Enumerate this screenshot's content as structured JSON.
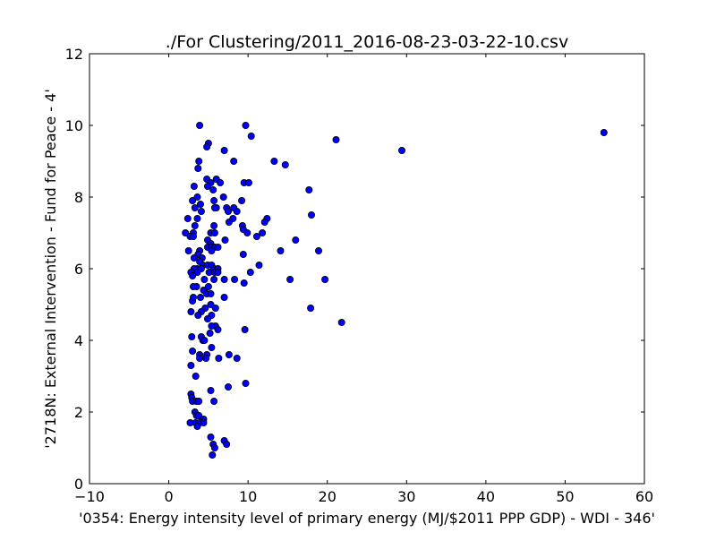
{
  "chart_data": {
    "type": "scatter",
    "title": "./For Clustering/2011_2016-08-23-03-22-10.csv",
    "xlabel": "'0354: Energy intensity level of primary energy  (MJ/$2011 PPP GDP) - WDI - 346'",
    "ylabel": "'2718N: External Intervention - Fund for Peace - 4'",
    "xlim": [
      -10,
      60
    ],
    "ylim": [
      0,
      12
    ],
    "xticks": [
      -10,
      0,
      10,
      20,
      30,
      40,
      50,
      60
    ],
    "yticks": [
      0,
      2,
      4,
      6,
      8,
      10,
      12
    ],
    "xtick_labels": [
      "−10",
      "0",
      "10",
      "20",
      "30",
      "40",
      "50",
      "60"
    ],
    "ytick_labels": [
      "0",
      "2",
      "4",
      "6",
      "8",
      "10",
      "12"
    ],
    "grid": false,
    "marker_color": "#0000ff",
    "marker_edge_color": "#000000",
    "series": [
      {
        "points": [
          [
            3.9,
            10.0
          ],
          [
            9.7,
            10.0
          ],
          [
            10.4,
            9.7
          ],
          [
            21.1,
            9.6
          ],
          [
            54.9,
            9.8
          ],
          [
            5.0,
            9.5
          ],
          [
            4.8,
            9.4
          ],
          [
            29.4,
            9.3
          ],
          [
            7.0,
            9.3
          ],
          [
            13.3,
            9.0
          ],
          [
            14.7,
            8.9
          ],
          [
            3.8,
            9.0
          ],
          [
            8.2,
            9.0
          ],
          [
            3.7,
            8.8
          ],
          [
            4.8,
            8.5
          ],
          [
            6.0,
            8.5
          ],
          [
            9.5,
            8.4
          ],
          [
            10.1,
            8.4
          ],
          [
            6.5,
            8.4
          ],
          [
            5.3,
            8.4
          ],
          [
            3.2,
            8.3
          ],
          [
            4.9,
            8.3
          ],
          [
            5.6,
            8.2
          ],
          [
            17.7,
            8.2
          ],
          [
            3.6,
            8.0
          ],
          [
            3.0,
            7.9
          ],
          [
            6.9,
            8.0
          ],
          [
            9.2,
            7.9
          ],
          [
            5.7,
            7.9
          ],
          [
            4.0,
            7.8
          ],
          [
            3.3,
            7.7
          ],
          [
            6.0,
            7.7
          ],
          [
            5.8,
            7.7
          ],
          [
            4.1,
            7.6
          ],
          [
            7.3,
            7.7
          ],
          [
            8.2,
            7.7
          ],
          [
            8.6,
            7.6
          ],
          [
            7.5,
            7.6
          ],
          [
            18.0,
            7.5
          ],
          [
            12.4,
            7.4
          ],
          [
            2.4,
            7.4
          ],
          [
            3.6,
            7.4
          ],
          [
            7.6,
            7.3
          ],
          [
            8.1,
            7.4
          ],
          [
            12.1,
            7.3
          ],
          [
            3.3,
            7.2
          ],
          [
            5.7,
            7.2
          ],
          [
            9.3,
            7.2
          ],
          [
            2.1,
            7.0
          ],
          [
            5.3,
            7.0
          ],
          [
            5.8,
            7.0
          ],
          [
            9.4,
            7.1
          ],
          [
            9.9,
            7.0
          ],
          [
            11.8,
            7.0
          ],
          [
            3.1,
            7.0
          ],
          [
            2.7,
            6.9
          ],
          [
            4.9,
            6.8
          ],
          [
            11.1,
            6.9
          ],
          [
            3.1,
            6.9
          ],
          [
            7.1,
            6.8
          ],
          [
            16.0,
            6.8
          ],
          [
            5.3,
            6.7
          ],
          [
            4.9,
            6.6
          ],
          [
            5.4,
            6.6
          ],
          [
            5.8,
            6.6
          ],
          [
            6.2,
            6.6
          ],
          [
            5.4,
            6.5
          ],
          [
            14.1,
            6.5
          ],
          [
            18.9,
            6.5
          ],
          [
            2.5,
            6.5
          ],
          [
            3.9,
            6.5
          ],
          [
            3.7,
            6.4
          ],
          [
            4.2,
            6.3
          ],
          [
            9.4,
            6.4
          ],
          [
            3.2,
            6.3
          ],
          [
            3.9,
            6.2
          ],
          [
            4.3,
            6.1
          ],
          [
            4.9,
            6.1
          ],
          [
            5.4,
            6.1
          ],
          [
            11.4,
            6.1
          ],
          [
            5.7,
            6.0
          ],
          [
            3.6,
            6.0
          ],
          [
            3.2,
            6.0
          ],
          [
            4.1,
            6.0
          ],
          [
            6.2,
            6.0
          ],
          [
            5.1,
            5.9
          ],
          [
            5.8,
            5.9
          ],
          [
            6.2,
            5.9
          ],
          [
            10.3,
            5.9
          ],
          [
            3.6,
            5.9
          ],
          [
            2.8,
            5.9
          ],
          [
            3.0,
            5.8
          ],
          [
            7.0,
            5.7
          ],
          [
            4.5,
            5.7
          ],
          [
            5.7,
            5.7
          ],
          [
            8.3,
            5.7
          ],
          [
            15.3,
            5.7
          ],
          [
            19.7,
            5.7
          ],
          [
            9.5,
            5.6
          ],
          [
            5.0,
            5.5
          ],
          [
            3.5,
            5.5
          ],
          [
            3.1,
            5.5
          ],
          [
            4.4,
            5.4
          ],
          [
            4.8,
            5.3
          ],
          [
            5.3,
            5.3
          ],
          [
            4.0,
            5.2
          ],
          [
            3.0,
            5.1
          ],
          [
            3.1,
            5.2
          ],
          [
            7.0,
            5.2
          ],
          [
            4.6,
            4.9
          ],
          [
            5.3,
            5.0
          ],
          [
            5.9,
            4.9
          ],
          [
            2.8,
            4.8
          ],
          [
            4.1,
            4.8
          ],
          [
            3.7,
            4.7
          ],
          [
            5.4,
            4.7
          ],
          [
            17.9,
            4.9
          ],
          [
            4.9,
            4.6
          ],
          [
            21.8,
            4.5
          ],
          [
            5.9,
            4.4
          ],
          [
            5.4,
            4.4
          ],
          [
            9.6,
            4.3
          ],
          [
            6.2,
            4.3
          ],
          [
            5.2,
            4.2
          ],
          [
            4.1,
            4.1
          ],
          [
            2.9,
            4.1
          ],
          [
            4.3,
            4.0
          ],
          [
            4.5,
            4.0
          ],
          [
            5.4,
            3.8
          ],
          [
            3.0,
            3.7
          ],
          [
            3.9,
            3.6
          ],
          [
            7.6,
            3.6
          ],
          [
            4.8,
            3.6
          ],
          [
            3.9,
            3.5
          ],
          [
            4.7,
            3.5
          ],
          [
            6.3,
            3.5
          ],
          [
            8.6,
            3.5
          ],
          [
            2.8,
            3.3
          ],
          [
            3.4,
            3.0
          ],
          [
            9.7,
            2.8
          ],
          [
            7.5,
            2.7
          ],
          [
            5.3,
            2.6
          ],
          [
            2.8,
            2.5
          ],
          [
            2.9,
            2.4
          ],
          [
            3.0,
            2.3
          ],
          [
            3.5,
            2.3
          ],
          [
            5.7,
            2.3
          ],
          [
            3.8,
            2.3
          ],
          [
            3.3,
            2.0
          ],
          [
            3.5,
            1.9
          ],
          [
            3.8,
            1.9
          ],
          [
            4.4,
            1.8
          ],
          [
            2.7,
            1.7
          ],
          [
            3.4,
            1.7
          ],
          [
            3.9,
            1.7
          ],
          [
            4.4,
            1.7
          ],
          [
            3.6,
            1.6
          ],
          [
            5.3,
            1.3
          ],
          [
            7.0,
            1.2
          ],
          [
            7.3,
            1.1
          ],
          [
            5.6,
            1.1
          ],
          [
            5.8,
            1.0
          ],
          [
            5.5,
            0.8
          ]
        ]
      }
    ]
  }
}
